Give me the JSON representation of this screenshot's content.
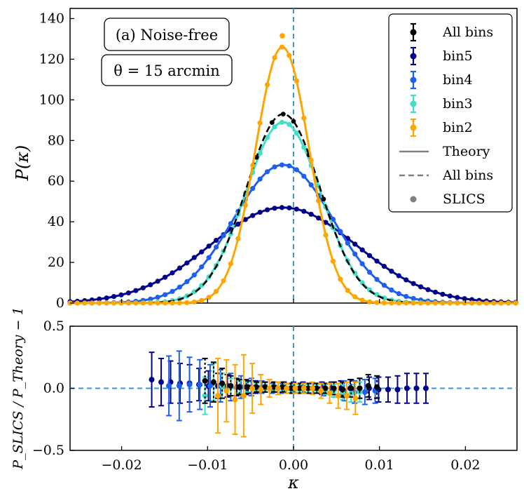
{
  "colors": {
    "all": "#000000",
    "bin5": "#00008b",
    "bin4": "#1f5ff0",
    "bin3": "#40e0c8",
    "bin2": "#ffa500",
    "vline": "#3f9ac9",
    "hline": "#3f9ac9",
    "legendgray": "#808080"
  },
  "top": {
    "ylabel": "P(κ)",
    "annotations": [
      "(a) Noise-free",
      "θ = 15 arcmin"
    ],
    "yticks": [
      "0",
      "20",
      "40",
      "60",
      "80",
      "100",
      "120",
      "140"
    ],
    "legend": [
      "All bins",
      "bin5",
      "bin4",
      "bin3",
      "bin2",
      "Theory",
      "All bins",
      "SLICS"
    ]
  },
  "bottom": {
    "ylabel": "P_SLICS / P_Theory − 1",
    "yticks": [
      "0.5",
      "0.0",
      "−0.5"
    ]
  },
  "xlabel": "κ",
  "xticks": [
    "−0.02",
    "−0.01",
    "0.00",
    "0.01",
    "0.02"
  ],
  "chart_data": [
    {
      "type": "line",
      "title": "",
      "xlabel": "κ",
      "ylabel": "P(κ)",
      "xlim": [
        -0.026,
        0.026
      ],
      "ylim": [
        0,
        145
      ],
      "vertical_line_x": 0.0,
      "series": [
        {
          "name": "bin5",
          "kind": "gaussian",
          "mu": -0.0012,
          "sigma": 0.0085,
          "peak": 47
        },
        {
          "name": "bin4",
          "kind": "gaussian",
          "mu": -0.0012,
          "sigma": 0.0058,
          "peak": 68
        },
        {
          "name": "bin3",
          "kind": "gaussian",
          "mu": -0.0012,
          "sigma": 0.0044,
          "peak": 89
        },
        {
          "name": "All bins",
          "kind": "gaussian",
          "mu": -0.0012,
          "sigma": 0.0043,
          "peak": 93
        },
        {
          "name": "bin2",
          "kind": "gaussian",
          "mu": -0.0013,
          "sigma": 0.0031,
          "peak": 126
        }
      ],
      "slics_points_sample": {
        "name": "bin2",
        "x": -0.0013,
        "y": 131.5
      }
    },
    {
      "type": "scatter",
      "xlabel": "κ",
      "ylabel": "P_SLICS / P_Theory − 1",
      "xlim": [
        -0.026,
        0.026
      ],
      "ylim": [
        -0.5,
        0.5
      ],
      "horizontal_line_y": 0.0,
      "series": [
        {
          "name": "bin5",
          "x": [
            -0.0165,
            -0.0154,
            -0.0143,
            -0.0132,
            -0.0121,
            -0.011,
            -0.0099,
            -0.0088,
            -0.0077,
            -0.0066,
            -0.0055,
            -0.0044,
            -0.0033,
            -0.0022,
            -0.0011,
            0.0,
            0.0011,
            0.0022,
            0.0033,
            0.0044,
            0.0055,
            0.0066,
            0.0077,
            0.0088,
            0.0099,
            0.011,
            0.0121,
            0.0132,
            0.0143,
            0.0154
          ],
          "y": [
            0.07,
            0.05,
            0.05,
            0.04,
            0.04,
            0.03,
            0.02,
            0.02,
            0.02,
            0.01,
            0.01,
            0.01,
            0.01,
            0.01,
            0.01,
            0.01,
            0.01,
            0.0,
            0.0,
            0.0,
            0.0,
            0.0,
            0.0,
            0.0,
            -0.01,
            -0.01,
            -0.01,
            0.0,
            0.0,
            0.0
          ],
          "err": [
            0.22,
            0.19,
            0.17,
            0.16,
            0.15,
            0.13,
            0.12,
            0.1,
            0.09,
            0.07,
            0.06,
            0.05,
            0.04,
            0.04,
            0.04,
            0.04,
            0.04,
            0.04,
            0.05,
            0.05,
            0.06,
            0.07,
            0.08,
            0.09,
            0.1,
            0.1,
            0.11,
            0.12,
            0.12,
            0.12
          ]
        },
        {
          "name": "bin4",
          "x": [
            -0.0145,
            -0.0133,
            -0.0121,
            -0.0109,
            -0.0097,
            -0.0085,
            -0.0073,
            -0.0061,
            -0.0049,
            -0.0037,
            -0.0025,
            -0.0013,
            -0.0001,
            0.0011,
            0.0023,
            0.0035,
            0.0047,
            0.0059,
            0.0071,
            0.0083,
            0.0095
          ],
          "y": [
            0.02,
            0.02,
            0.03,
            0.03,
            0.02,
            0.02,
            0.01,
            0.01,
            0.01,
            0.01,
            0.0,
            0.0,
            0.0,
            0.0,
            0.0,
            -0.01,
            -0.01,
            -0.02,
            -0.03,
            -0.03,
            -0.02
          ],
          "err": [
            0.24,
            0.28,
            0.22,
            0.2,
            0.17,
            0.13,
            0.11,
            0.09,
            0.07,
            0.05,
            0.04,
            0.04,
            0.04,
            0.04,
            0.04,
            0.05,
            0.06,
            0.08,
            0.09,
            0.1,
            0.1
          ]
        },
        {
          "name": "bin3",
          "x": [
            -0.0103,
            -0.0093,
            -0.0083,
            -0.0073,
            -0.0063,
            -0.0053,
            -0.0043,
            -0.0033,
            -0.0023,
            -0.0013,
            -0.0003,
            0.0007,
            0.0017,
            0.0027,
            0.0037,
            0.0047,
            0.0057,
            0.0067,
            0.0077
          ],
          "y": [
            -0.06,
            0.05,
            0.02,
            0.01,
            0.01,
            0.01,
            0.01,
            0.0,
            0.0,
            0.0,
            0.0,
            0.0,
            0.0,
            0.0,
            -0.01,
            -0.02,
            -0.03,
            -0.04,
            -0.03
          ],
          "err": [
            0.15,
            0.15,
            0.1,
            0.07,
            0.05,
            0.04,
            0.03,
            0.03,
            0.03,
            0.03,
            0.03,
            0.03,
            0.03,
            0.03,
            0.04,
            0.05,
            0.06,
            0.07,
            0.08
          ]
        },
        {
          "name": "All bins",
          "x": [
            -0.0103,
            -0.0093,
            -0.0083,
            -0.0073,
            -0.0063,
            -0.0053,
            -0.0043,
            -0.0033,
            -0.0023,
            -0.0013,
            -0.0003,
            0.0007,
            0.0017,
            0.0027,
            0.0037,
            0.0047,
            0.0057,
            0.0067,
            0.0077,
            0.0087,
            0.0097
          ],
          "y": [
            0.06,
            0.05,
            0.04,
            0.02,
            0.01,
            0.01,
            0.01,
            0.01,
            0.01,
            0.01,
            0.0,
            0.0,
            0.0,
            0.0,
            0.0,
            0.0,
            -0.01,
            0.0,
            0.0,
            0.02,
            0.01
          ],
          "err": [
            0.18,
            0.16,
            0.12,
            0.08,
            0.06,
            0.05,
            0.04,
            0.04,
            0.04,
            0.04,
            0.04,
            0.04,
            0.04,
            0.04,
            0.04,
            0.05,
            0.06,
            0.07,
            0.08,
            0.09,
            0.09
          ]
        },
        {
          "name": "bin2",
          "x": [
            -0.0088,
            -0.0078,
            -0.0068,
            -0.0058,
            -0.0048,
            -0.0038,
            -0.0028,
            -0.0018,
            -0.0008,
            0.0002,
            0.0012,
            0.0022,
            0.0032,
            0.0042,
            0.0052,
            0.0062,
            0.0072
          ],
          "y": [
            -0.06,
            -0.02,
            -0.09,
            -0.06,
            0.0,
            -0.01,
            0.0,
            0.0,
            0.0,
            0.0,
            0.0,
            0.0,
            -0.02,
            -0.04,
            -0.06,
            -0.06,
            -0.08
          ],
          "err": [
            0.3,
            0.25,
            0.28,
            0.33,
            0.2,
            0.12,
            0.07,
            0.05,
            0.04,
            0.04,
            0.04,
            0.05,
            0.06,
            0.08,
            0.1,
            0.11,
            0.13
          ]
        }
      ]
    }
  ]
}
